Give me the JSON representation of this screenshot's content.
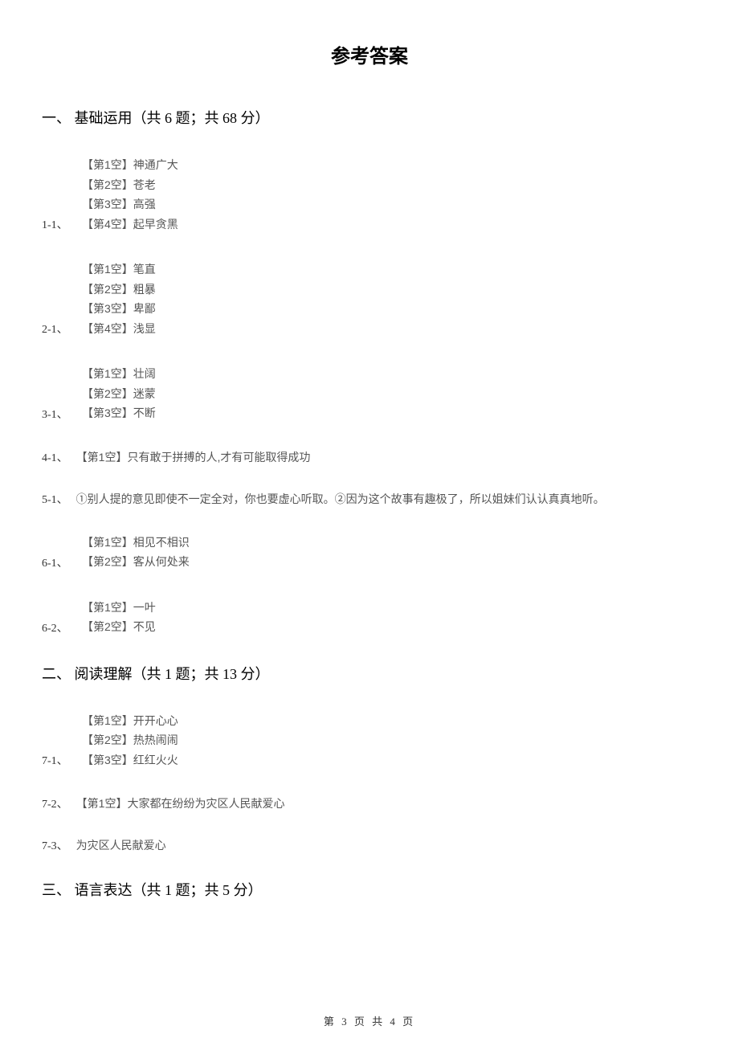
{
  "title": "参考答案",
  "sections": {
    "s1": {
      "header": "一、 基础运用（共 6 题；共 68 分）"
    },
    "s2": {
      "header": "二、 阅读理解（共 1 题；共 13 分）"
    },
    "s3": {
      "header": "三、 语言表达（共 1 题；共 5 分）"
    }
  },
  "q1": {
    "label": "1-1、",
    "a1": "【第1空】神通广大",
    "a2": "【第2空】苍老",
    "a3": "【第3空】高强",
    "a4": "【第4空】起早贪黑"
  },
  "q2": {
    "label": "2-1、",
    "a1": "【第1空】笔直",
    "a2": "【第2空】粗暴",
    "a3": "【第3空】卑鄙",
    "a4": "【第4空】浅显"
  },
  "q3": {
    "label": "3-1、",
    "a1": "【第1空】壮阔",
    "a2": "【第2空】迷蒙",
    "a3": "【第3空】不断"
  },
  "q4": {
    "label": "4-1、",
    "a1": "【第1空】只有敢于拼搏的人,才有可能取得成功"
  },
  "q5": {
    "label": "5-1、",
    "a1": "①别人提的意见即使不一定全对，你也要虚心听取。②因为这个故事有趣极了，所以姐妹们认认真真地听。"
  },
  "q6a": {
    "label": "6-1、",
    "a1": "【第1空】相见不相识",
    "a2": "【第2空】客从何处来"
  },
  "q6b": {
    "label": "6-2、",
    "a1": "【第1空】一叶",
    "a2": "【第2空】不见"
  },
  "q7a": {
    "label": "7-1、",
    "a1": "【第1空】开开心心",
    "a2": "【第2空】热热闹闹",
    "a3": "【第3空】红红火火"
  },
  "q7b": {
    "label": "7-2、",
    "a1": "【第1空】大家都在纷纷为灾区人民献爱心"
  },
  "q7c": {
    "label": "7-3、",
    "a1": "为灾区人民献爱心"
  },
  "footer": "第 3 页 共 4 页"
}
